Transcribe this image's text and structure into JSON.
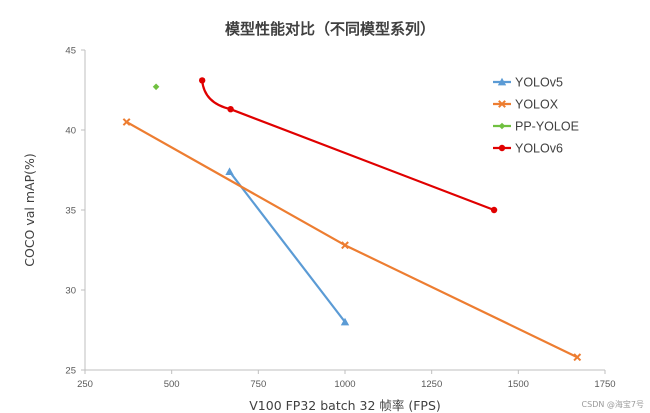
{
  "watermark": "CSDN @海宝7号",
  "chart_data": {
    "type": "line",
    "title": "模型性能对比（不同模型系列）",
    "xlabel": "V100 FP32 batch 32 帧率 (FPS)",
    "ylabel": "COCO val mAP(%)",
    "xlim": [
      250,
      1750
    ],
    "ylim": [
      25,
      45
    ],
    "xticks": [
      250,
      500,
      750,
      1000,
      1250,
      1500,
      1750
    ],
    "yticks": [
      25,
      30,
      35,
      40,
      45
    ],
    "grid": false,
    "legend_position": "top-right",
    "series": [
      {
        "name": "YOLOv5",
        "color": "#5b9bd5",
        "marker": "triangle",
        "curve": "straight",
        "x": [
          667,
          1000
        ],
        "y": [
          37.4,
          28.0
        ]
      },
      {
        "name": "YOLOX",
        "color": "#ed7d31",
        "marker": "x",
        "curve": "straight",
        "x": [
          370,
          1000,
          1670
        ],
        "y": [
          40.5,
          32.8,
          25.8
        ]
      },
      {
        "name": "PP-YOLOE",
        "color": "#70c040",
        "marker": "diamond",
        "curve": "straight",
        "x": [
          455
        ],
        "y": [
          42.7
        ]
      },
      {
        "name": "YOLOv6",
        "color": "#e00000",
        "marker": "circle",
        "curve": "smooth",
        "x": [
          588,
          670,
          1430
        ],
        "y": [
          43.1,
          41.3,
          35.0
        ]
      }
    ]
  }
}
